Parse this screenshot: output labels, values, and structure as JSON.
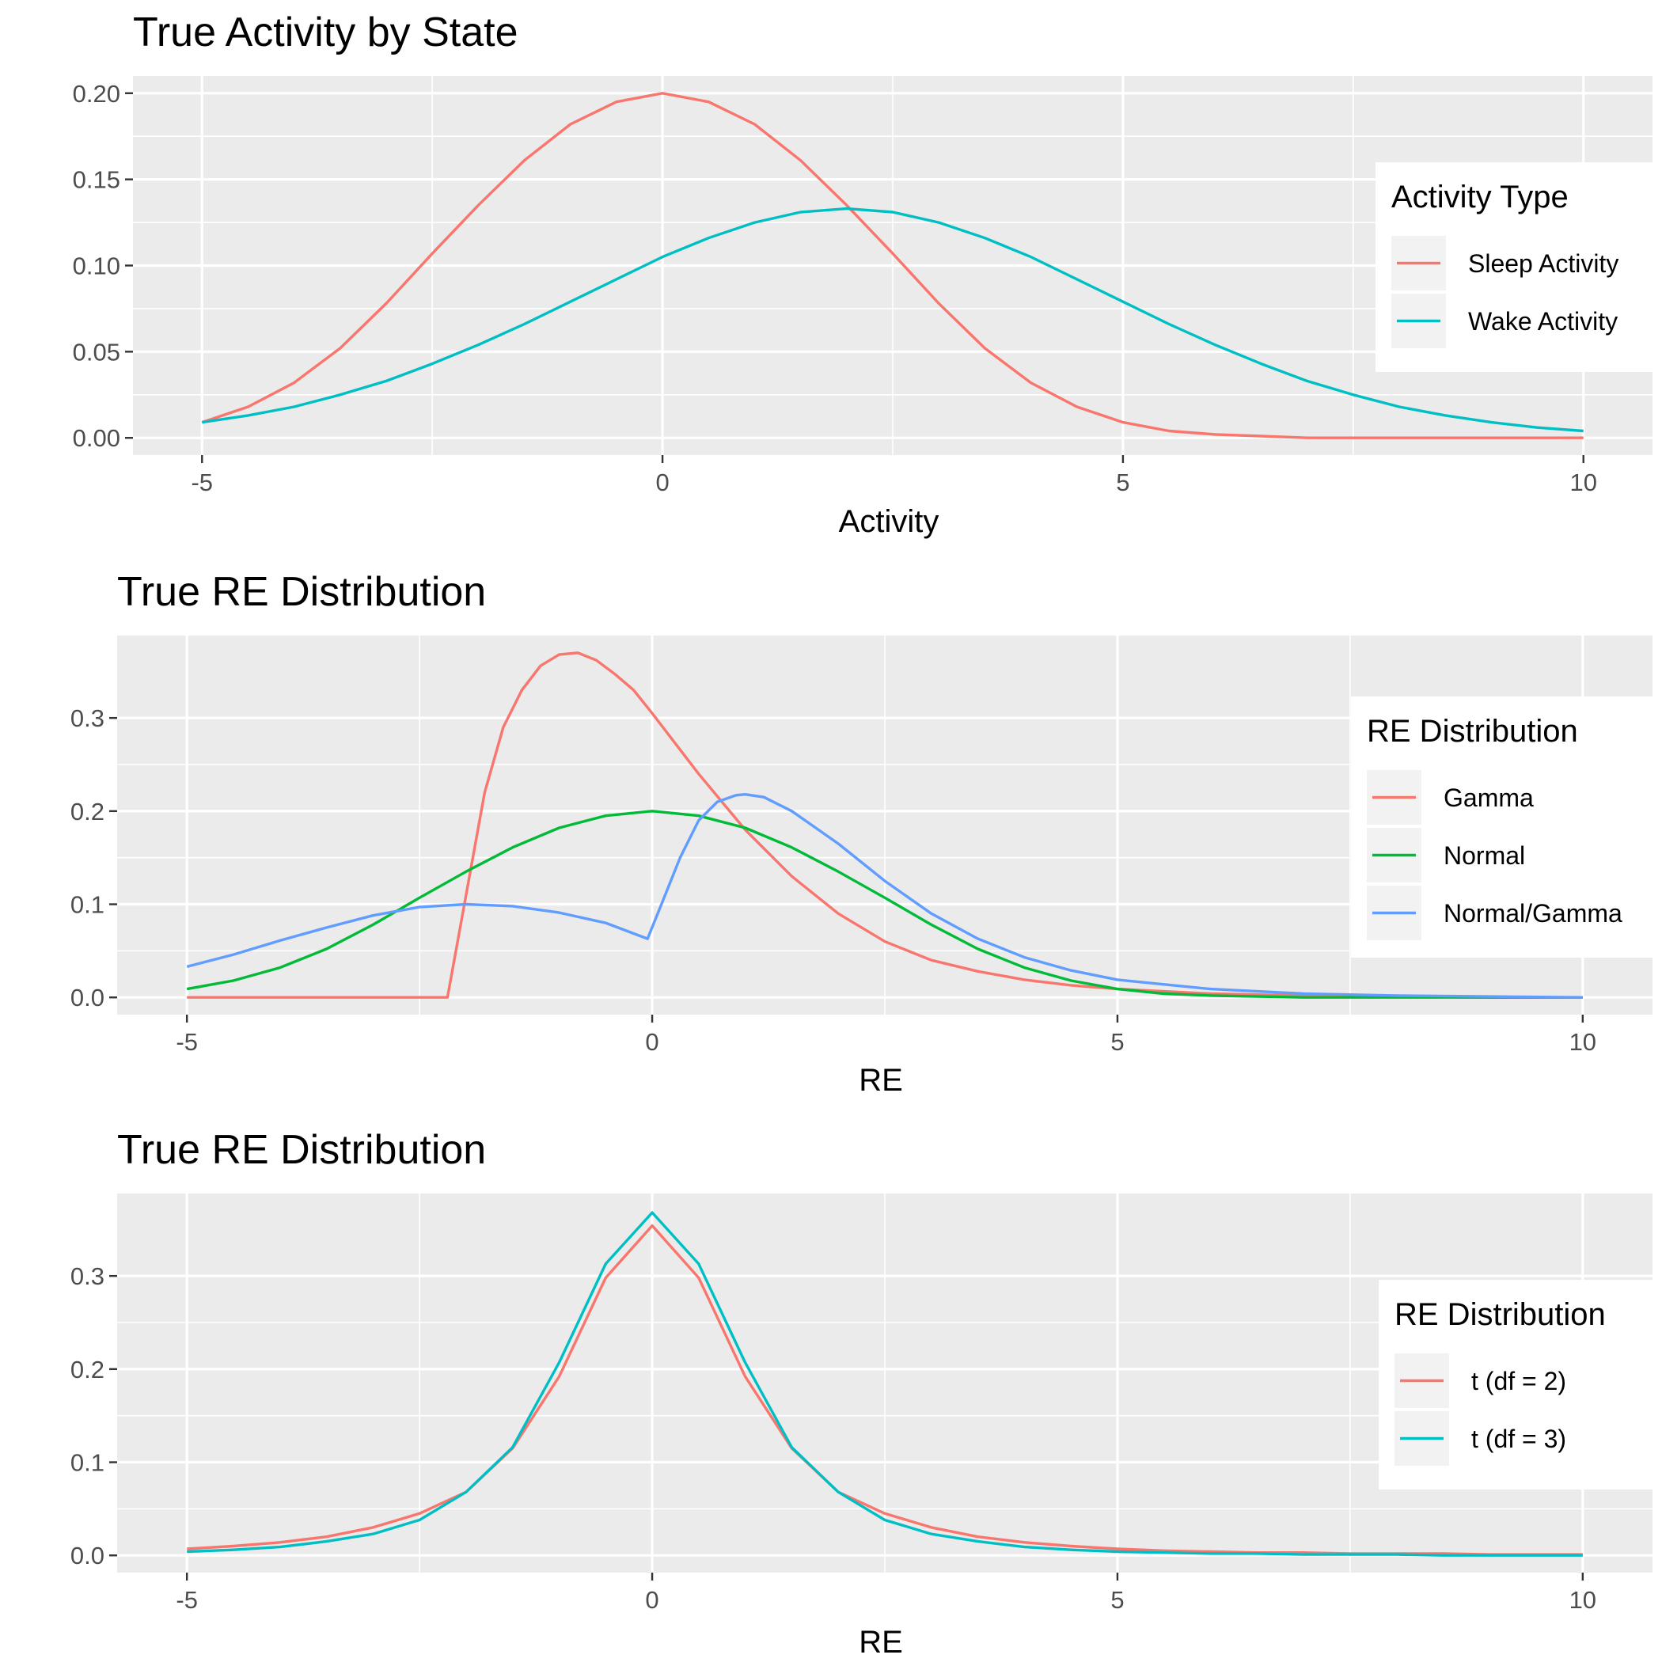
{
  "chart_data": [
    {
      "type": "line",
      "title": "True Activity by State",
      "xlabel": "Activity",
      "ylabel": "",
      "xlim": [
        -5,
        10
      ],
      "ylim": [
        0,
        0.2
      ],
      "x_ticks": [
        "-5",
        "0",
        "5",
        "10"
      ],
      "y_ticks": [
        "0.00",
        "0.05",
        "0.10",
        "0.15",
        "0.20"
      ],
      "grid": true,
      "legend": {
        "title": "Activity Type",
        "position": "right"
      },
      "series": [
        {
          "name": "Sleep Activity",
          "color": "#F8766D",
          "x": [
            -5,
            -4.5,
            -4,
            -3.5,
            -3,
            -2.5,
            -2,
            -1.5,
            -1,
            -0.5,
            0,
            0.5,
            1,
            1.5,
            2,
            2.5,
            3,
            3.5,
            4,
            4.5,
            5,
            5.5,
            6,
            6.5,
            7,
            7.5,
            8,
            8.5,
            9,
            9.5,
            10
          ],
          "y": [
            0.009,
            0.018,
            0.032,
            0.052,
            0.078,
            0.107,
            0.135,
            0.161,
            0.182,
            0.195,
            0.2,
            0.195,
            0.182,
            0.161,
            0.135,
            0.107,
            0.078,
            0.052,
            0.032,
            0.018,
            0.009,
            0.004,
            0.002,
            0.001,
            0.0,
            0.0,
            0.0,
            0.0,
            0.0,
            0.0,
            0.0
          ]
        },
        {
          "name": "Wake Activity",
          "color": "#00BFC4",
          "x": [
            -5,
            -4.5,
            -4,
            -3.5,
            -3,
            -2.5,
            -2,
            -1.5,
            -1,
            -0.5,
            0,
            0.5,
            1,
            1.5,
            2,
            2.5,
            3,
            3.5,
            4,
            4.5,
            5,
            5.5,
            6,
            6.5,
            7,
            7.5,
            8,
            8.5,
            9,
            9.5,
            10
          ],
          "y": [
            0.009,
            0.013,
            0.018,
            0.025,
            0.033,
            0.043,
            0.054,
            0.066,
            0.079,
            0.092,
            0.105,
            0.116,
            0.125,
            0.131,
            0.133,
            0.131,
            0.125,
            0.116,
            0.105,
            0.092,
            0.079,
            0.066,
            0.054,
            0.043,
            0.033,
            0.025,
            0.018,
            0.013,
            0.009,
            0.006,
            0.004
          ]
        }
      ]
    },
    {
      "type": "line",
      "title": "True RE Distribution",
      "xlabel": "RE",
      "ylabel": "",
      "xlim": [
        -5,
        10
      ],
      "ylim": [
        0,
        0.37
      ],
      "x_ticks": [
        "-5",
        "0",
        "5",
        "10"
      ],
      "y_ticks": [
        "0.0",
        "0.1",
        "0.2",
        "0.3"
      ],
      "grid": true,
      "legend": {
        "title": "RE Distribution",
        "position": "right"
      },
      "series": [
        {
          "name": "Gamma",
          "color": "#F8766D",
          "x": [
            -5,
            -2.2,
            -2.0,
            -1.8,
            -1.6,
            -1.4,
            -1.2,
            -1.0,
            -0.8,
            -0.6,
            -0.4,
            -0.2,
            0,
            0.5,
            1.0,
            1.5,
            2.0,
            2.5,
            3.0,
            3.5,
            4.0,
            4.5,
            5.0,
            6.0,
            7.0,
            8.0,
            9.0,
            10.0
          ],
          "y": [
            0,
            0,
            0.11,
            0.22,
            0.29,
            0.33,
            0.356,
            0.368,
            0.37,
            0.362,
            0.347,
            0.33,
            0.305,
            0.24,
            0.18,
            0.13,
            0.09,
            0.06,
            0.04,
            0.028,
            0.019,
            0.013,
            0.009,
            0.004,
            0.002,
            0.001,
            0.0,
            0.0
          ]
        },
        {
          "name": "Normal",
          "color": "#00BA38",
          "x": [
            -5,
            -4.5,
            -4,
            -3.5,
            -3,
            -2.5,
            -2,
            -1.5,
            -1,
            -0.5,
            0,
            0.5,
            1,
            1.5,
            2,
            2.5,
            3,
            3.5,
            4,
            4.5,
            5,
            5.5,
            6,
            6.5,
            7,
            7.5,
            8,
            8.5,
            9,
            9.5,
            10
          ],
          "y": [
            0.009,
            0.018,
            0.032,
            0.052,
            0.078,
            0.107,
            0.135,
            0.161,
            0.182,
            0.195,
            0.2,
            0.195,
            0.182,
            0.161,
            0.135,
            0.107,
            0.078,
            0.052,
            0.032,
            0.018,
            0.009,
            0.004,
            0.002,
            0.001,
            0.0,
            0.0,
            0.0,
            0.0,
            0.0,
            0.0,
            0.0
          ]
        },
        {
          "name": "Normal/Gamma",
          "color": "#619CFF",
          "x": [
            -5,
            -4.5,
            -4,
            -3.5,
            -3,
            -2.5,
            -2,
            -1.5,
            -1,
            -0.5,
            -0.05,
            0.1,
            0.3,
            0.5,
            0.7,
            0.9,
            1.0,
            1.2,
            1.5,
            2.0,
            2.5,
            3.0,
            3.5,
            4.0,
            4.5,
            5.0,
            6.0,
            7.0,
            8.0,
            9.0,
            10.0
          ],
          "y": [
            0.033,
            0.046,
            0.061,
            0.075,
            0.088,
            0.097,
            0.1,
            0.098,
            0.091,
            0.08,
            0.063,
            0.1,
            0.15,
            0.19,
            0.21,
            0.217,
            0.218,
            0.215,
            0.2,
            0.165,
            0.125,
            0.09,
            0.063,
            0.043,
            0.029,
            0.019,
            0.009,
            0.004,
            0.002,
            0.001,
            0.0
          ]
        }
      ]
    },
    {
      "type": "line",
      "title": "True RE Distribution",
      "xlabel": "RE",
      "ylabel": "",
      "xlim": [
        -5,
        10
      ],
      "ylim": [
        0,
        0.37
      ],
      "x_ticks": [
        "-5",
        "0",
        "5",
        "10"
      ],
      "y_ticks": [
        "0.0",
        "0.1",
        "0.2",
        "0.3"
      ],
      "grid": true,
      "legend": {
        "title": "RE Distribution",
        "position": "right"
      },
      "series": [
        {
          "name": "t (df = 2)",
          "color": "#F8766D",
          "x": [
            -5,
            -4.5,
            -4,
            -3.5,
            -3,
            -2.5,
            -2,
            -1.5,
            -1,
            -0.5,
            0,
            0.5,
            1,
            1.5,
            2,
            2.5,
            3,
            3.5,
            4,
            4.5,
            5,
            5.5,
            6,
            6.5,
            7,
            7.5,
            8,
            8.5,
            9,
            9.5,
            10
          ],
          "y": [
            0.007,
            0.01,
            0.014,
            0.02,
            0.03,
            0.045,
            0.068,
            0.115,
            0.192,
            0.298,
            0.354,
            0.298,
            0.192,
            0.115,
            0.068,
            0.045,
            0.03,
            0.02,
            0.014,
            0.01,
            0.007,
            0.005,
            0.004,
            0.003,
            0.003,
            0.002,
            0.002,
            0.002,
            0.001,
            0.001,
            0.001
          ]
        },
        {
          "name": "t (df = 3)",
          "color": "#00BFC4",
          "x": [
            -5,
            -4.5,
            -4,
            -3.5,
            -3,
            -2.5,
            -2,
            -1.5,
            -1,
            -0.5,
            0,
            0.5,
            1,
            1.5,
            2,
            2.5,
            3,
            3.5,
            4,
            4.5,
            5,
            5.5,
            6,
            6.5,
            7,
            7.5,
            8,
            8.5,
            9,
            9.5,
            10
          ],
          "y": [
            0.004,
            0.006,
            0.009,
            0.015,
            0.023,
            0.038,
            0.068,
            0.116,
            0.207,
            0.313,
            0.368,
            0.313,
            0.207,
            0.116,
            0.068,
            0.038,
            0.023,
            0.015,
            0.009,
            0.006,
            0.004,
            0.003,
            0.002,
            0.002,
            0.001,
            0.001,
            0.001,
            0.0,
            0.0,
            0.0,
            0.0
          ]
        }
      ]
    }
  ]
}
